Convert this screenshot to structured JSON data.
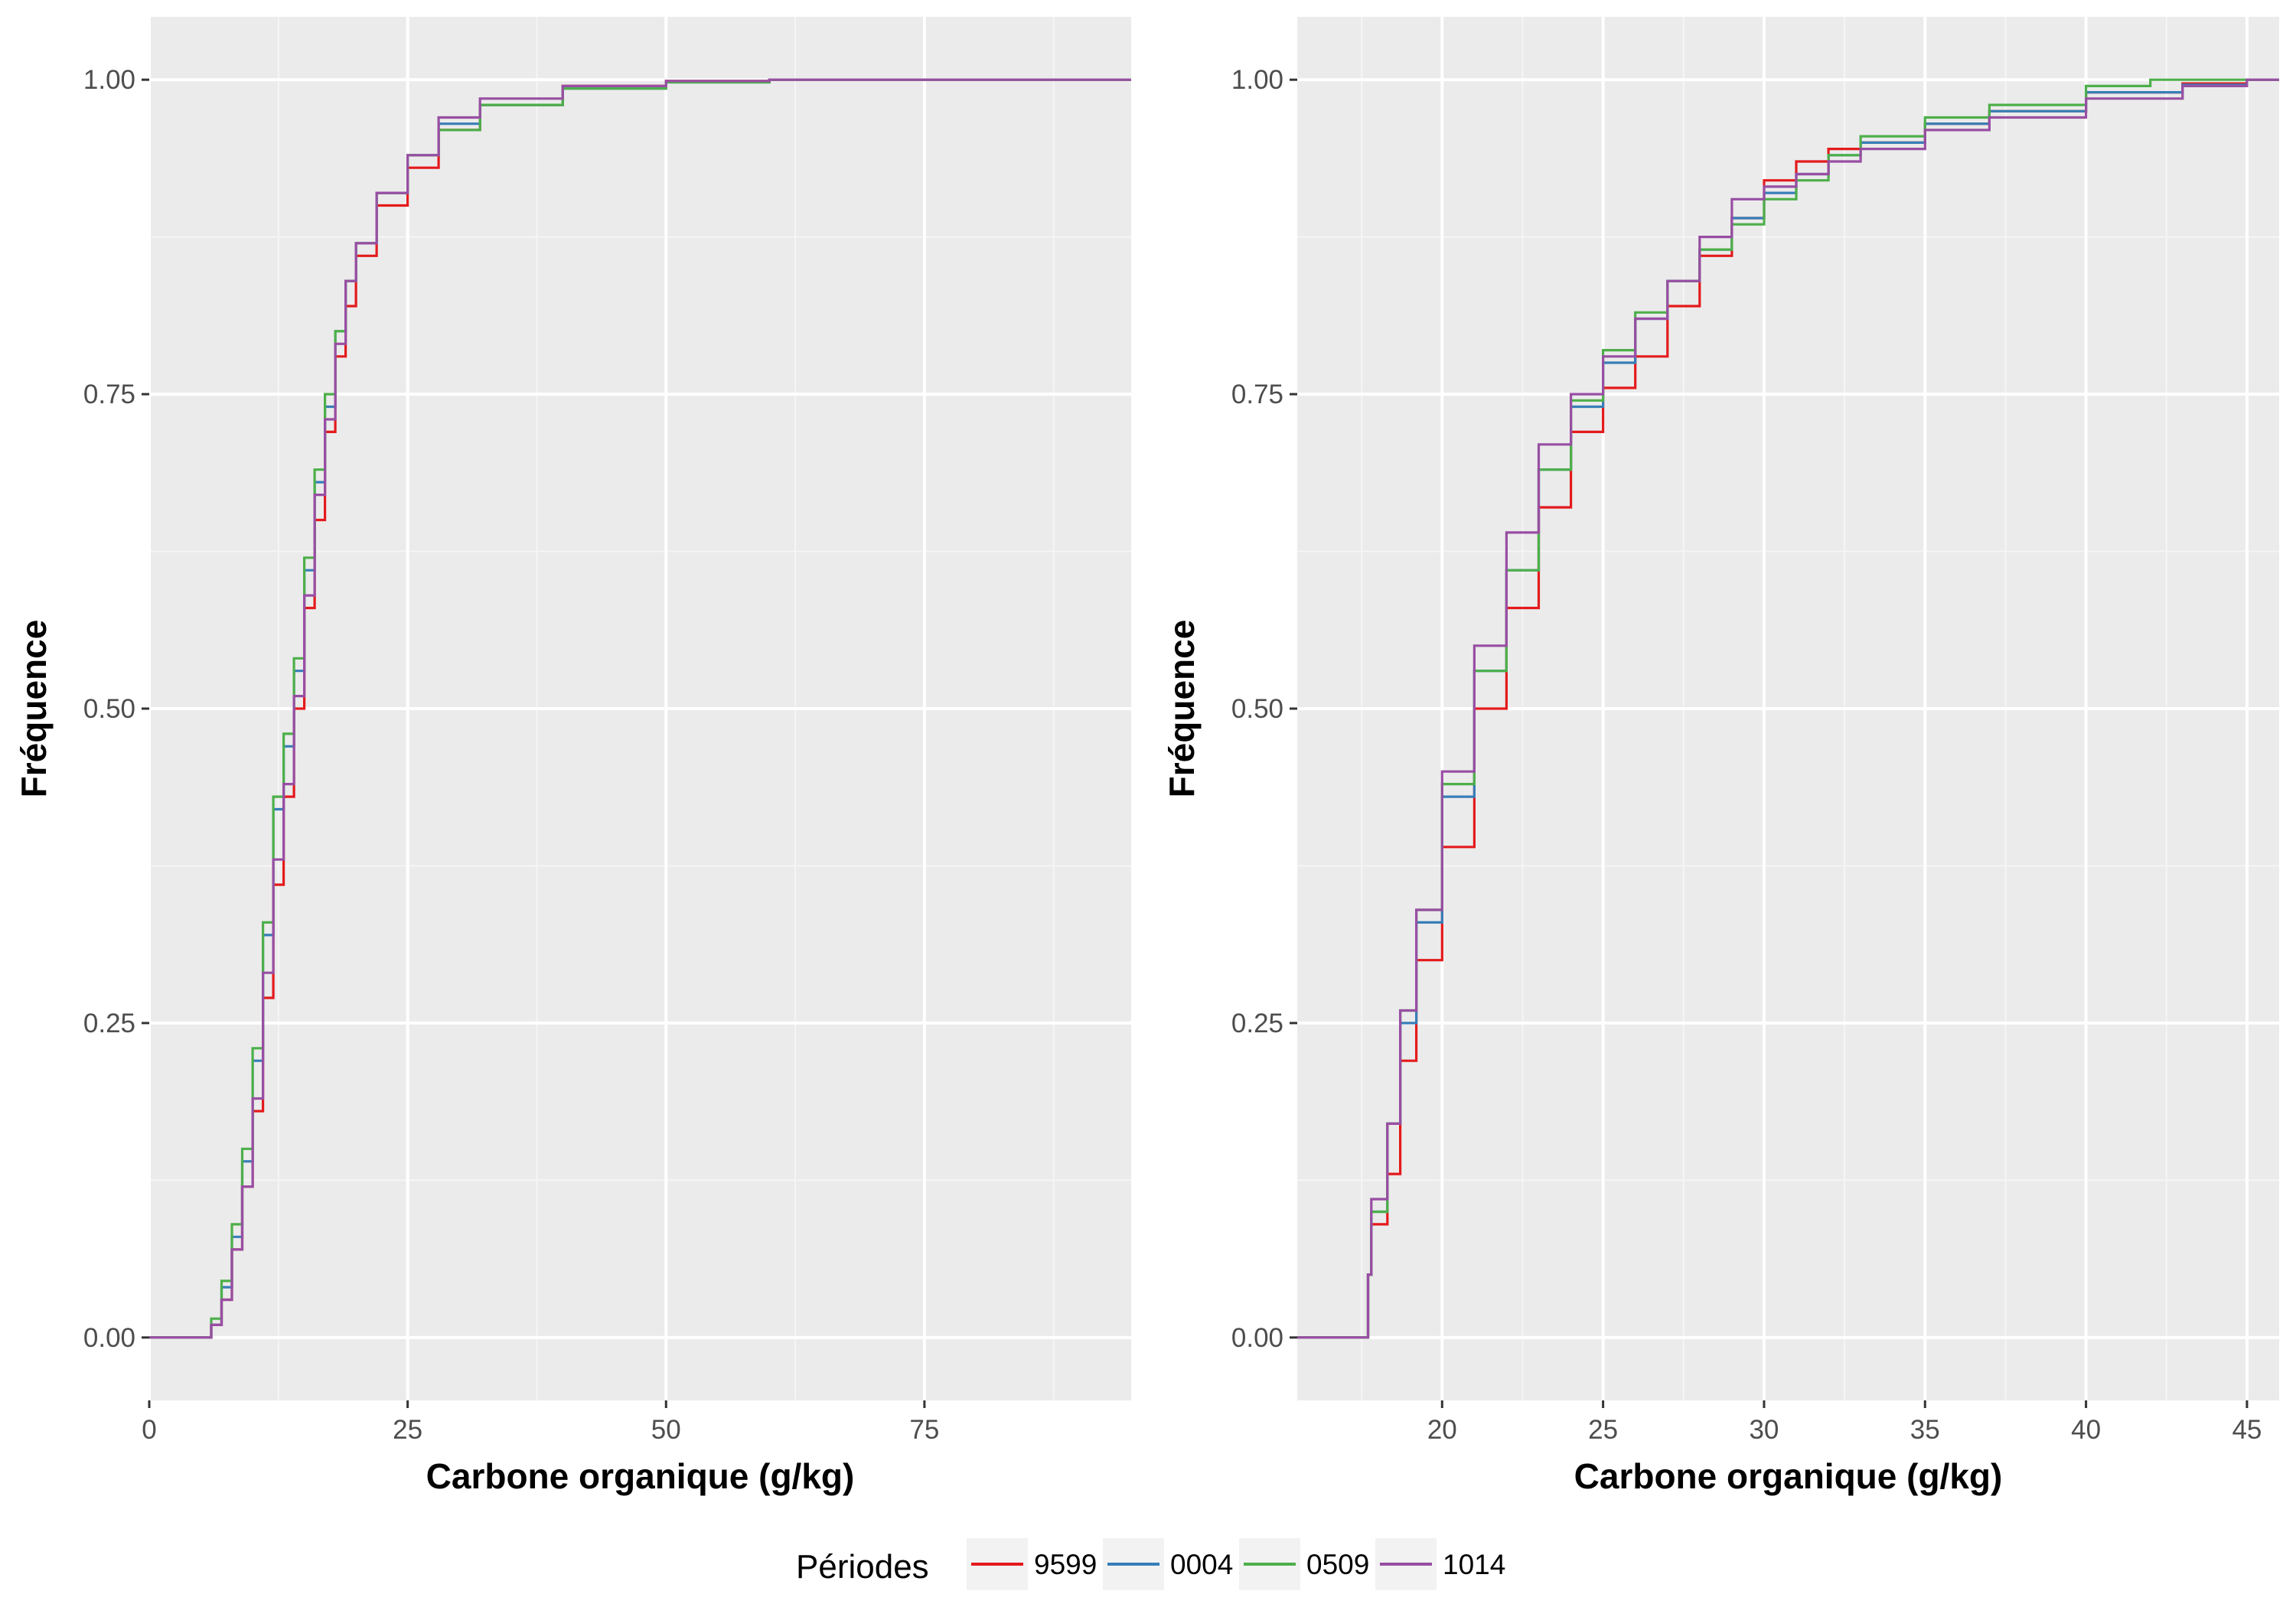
{
  "chart_data": [
    {
      "type": "line",
      "title": "",
      "xlabel": "Carbone organique (g/kg)",
      "ylabel": "Fréquence",
      "xlim": [
        0,
        95
      ],
      "ylim": [
        -0.05,
        1.05
      ],
      "xticks": [
        0,
        25,
        50,
        75
      ],
      "xtick_labels": [
        "0",
        "25",
        "50",
        "75"
      ],
      "yticks": [
        0,
        0.25,
        0.5,
        0.75,
        1
      ],
      "ytick_labels": [
        "0.00",
        "0.25",
        "0.50",
        "0.75",
        "1.00"
      ],
      "grid": true,
      "series": [
        {
          "name": "9599",
          "color": "#e41a1c",
          "points": [
            [
              0,
              0
            ],
            [
              5,
              0
            ],
            [
              6,
              0.01
            ],
            [
              7,
              0.03
            ],
            [
              8,
              0.07
            ],
            [
              9,
              0.12
            ],
            [
              10,
              0.18
            ],
            [
              11,
              0.27
            ],
            [
              12,
              0.36
            ],
            [
              13,
              0.43
            ],
            [
              14,
              0.5
            ],
            [
              15,
              0.58
            ],
            [
              16,
              0.65
            ],
            [
              17,
              0.72
            ],
            [
              18,
              0.78
            ],
            [
              19,
              0.82
            ],
            [
              20,
              0.86
            ],
            [
              22,
              0.9
            ],
            [
              25,
              0.93
            ],
            [
              28,
              0.96
            ],
            [
              32,
              0.98
            ],
            [
              40,
              0.995
            ],
            [
              50,
              0.999
            ],
            [
              60,
              1
            ],
            [
              95,
              1
            ]
          ]
        },
        {
          "name": "0004",
          "color": "#377eb8",
          "points": [
            [
              0,
              0
            ],
            [
              5,
              0
            ],
            [
              6,
              0.01
            ],
            [
              7,
              0.04
            ],
            [
              8,
              0.08
            ],
            [
              9,
              0.14
            ],
            [
              10,
              0.22
            ],
            [
              11,
              0.32
            ],
            [
              12,
              0.42
            ],
            [
              13,
              0.47
            ],
            [
              14,
              0.53
            ],
            [
              15,
              0.61
            ],
            [
              16,
              0.68
            ],
            [
              17,
              0.74
            ],
            [
              18,
              0.8
            ],
            [
              19,
              0.84
            ],
            [
              20,
              0.87
            ],
            [
              22,
              0.91
            ],
            [
              25,
              0.94
            ],
            [
              28,
              0.965
            ],
            [
              32,
              0.98
            ],
            [
              40,
              0.993
            ],
            [
              50,
              0.998
            ],
            [
              60,
              1
            ],
            [
              95,
              1
            ]
          ]
        },
        {
          "name": "0509",
          "color": "#4daf4a",
          "points": [
            [
              0,
              0
            ],
            [
              5,
              0
            ],
            [
              6,
              0.015
            ],
            [
              7,
              0.045
            ],
            [
              8,
              0.09
            ],
            [
              9,
              0.15
            ],
            [
              10,
              0.23
            ],
            [
              11,
              0.33
            ],
            [
              12,
              0.43
            ],
            [
              13,
              0.48
            ],
            [
              14,
              0.54
            ],
            [
              15,
              0.62
            ],
            [
              16,
              0.69
            ],
            [
              17,
              0.75
            ],
            [
              18,
              0.8
            ],
            [
              19,
              0.84
            ],
            [
              20,
              0.87
            ],
            [
              22,
              0.91
            ],
            [
              25,
              0.94
            ],
            [
              28,
              0.96
            ],
            [
              32,
              0.98
            ],
            [
              40,
              0.993
            ],
            [
              50,
              0.998
            ],
            [
              60,
              1
            ],
            [
              95,
              1
            ]
          ]
        },
        {
          "name": "1014",
          "color": "#984ea3",
          "points": [
            [
              0,
              0
            ],
            [
              5,
              0
            ],
            [
              6,
              0.01
            ],
            [
              7,
              0.03
            ],
            [
              8,
              0.07
            ],
            [
              9,
              0.12
            ],
            [
              10,
              0.19
            ],
            [
              11,
              0.29
            ],
            [
              12,
              0.38
            ],
            [
              13,
              0.44
            ],
            [
              14,
              0.51
            ],
            [
              15,
              0.59
            ],
            [
              16,
              0.67
            ],
            [
              17,
              0.73
            ],
            [
              18,
              0.79
            ],
            [
              19,
              0.84
            ],
            [
              20,
              0.87
            ],
            [
              22,
              0.91
            ],
            [
              25,
              0.94
            ],
            [
              28,
              0.97
            ],
            [
              32,
              0.985
            ],
            [
              40,
              0.995
            ],
            [
              50,
              0.999
            ],
            [
              60,
              1
            ],
            [
              95,
              1
            ]
          ]
        }
      ]
    },
    {
      "type": "line",
      "title": "",
      "xlabel": "Carbone organique (g/kg)",
      "ylabel": "Fréquence",
      "xlim": [
        15.5,
        46
      ],
      "ylim": [
        -0.05,
        1.05
      ],
      "xticks": [
        20,
        25,
        30,
        35,
        40,
        45
      ],
      "xtick_labels": [
        "20",
        "25",
        "30",
        "35",
        "40",
        "45"
      ],
      "yticks": [
        0,
        0.25,
        0.5,
        0.75,
        1
      ],
      "ytick_labels": [
        "0.00",
        "0.25",
        "0.50",
        "0.75",
        "1.00"
      ],
      "grid": true,
      "series": [
        {
          "name": "9599",
          "color": "#e41a1c",
          "points": [
            [
              15.5,
              0
            ],
            [
              17.5,
              0
            ],
            [
              17.7,
              0.05
            ],
            [
              17.8,
              0.09
            ],
            [
              18.3,
              0.13
            ],
            [
              18.7,
              0.22
            ],
            [
              19.2,
              0.3
            ],
            [
              20,
              0.39
            ],
            [
              21,
              0.5
            ],
            [
              22,
              0.58
            ],
            [
              23,
              0.66
            ],
            [
              24,
              0.72
            ],
            [
              25,
              0.755
            ],
            [
              26,
              0.78
            ],
            [
              27,
              0.82
            ],
            [
              28,
              0.86
            ],
            [
              29,
              0.89
            ],
            [
              30,
              0.92
            ],
            [
              31,
              0.935
            ],
            [
              32,
              0.945
            ],
            [
              33,
              0.95
            ],
            [
              35,
              0.965
            ],
            [
              37,
              0.975
            ],
            [
              40,
              0.99
            ],
            [
              43,
              0.997
            ],
            [
              45,
              1
            ],
            [
              46,
              1
            ]
          ]
        },
        {
          "name": "0004",
          "color": "#377eb8",
          "points": [
            [
              15.5,
              0
            ],
            [
              17.5,
              0
            ],
            [
              17.7,
              0.05
            ],
            [
              17.8,
              0.1
            ],
            [
              18.3,
              0.17
            ],
            [
              18.7,
              0.25
            ],
            [
              19.2,
              0.33
            ],
            [
              20,
              0.43
            ],
            [
              21,
              0.53
            ],
            [
              22,
              0.61
            ],
            [
              23,
              0.69
            ],
            [
              24,
              0.74
            ],
            [
              25,
              0.775
            ],
            [
              26,
              0.81
            ],
            [
              27,
              0.84
            ],
            [
              28,
              0.865
            ],
            [
              29,
              0.89
            ],
            [
              30,
              0.91
            ],
            [
              31,
              0.925
            ],
            [
              32,
              0.94
            ],
            [
              33,
              0.95
            ],
            [
              35,
              0.965
            ],
            [
              37,
              0.975
            ],
            [
              40,
              0.99
            ],
            [
              43,
              0.996
            ],
            [
              45,
              1
            ],
            [
              46,
              1
            ]
          ]
        },
        {
          "name": "0509",
          "color": "#4daf4a",
          "points": [
            [
              15.5,
              0
            ],
            [
              17.5,
              0
            ],
            [
              17.7,
              0.05
            ],
            [
              17.8,
              0.1
            ],
            [
              18.3,
              0.17
            ],
            [
              18.7,
              0.26
            ],
            [
              19.2,
              0.34
            ],
            [
              20,
              0.44
            ],
            [
              21,
              0.53
            ],
            [
              22,
              0.61
            ],
            [
              23,
              0.69
            ],
            [
              24,
              0.745
            ],
            [
              25,
              0.785
            ],
            [
              26,
              0.815
            ],
            [
              27,
              0.84
            ],
            [
              28,
              0.865
            ],
            [
              29,
              0.885
            ],
            [
              30,
              0.905
            ],
            [
              31,
              0.92
            ],
            [
              32,
              0.94
            ],
            [
              33,
              0.955
            ],
            [
              35,
              0.97
            ],
            [
              37,
              0.98
            ],
            [
              40,
              0.995
            ],
            [
              42,
              1
            ],
            [
              46,
              1
            ]
          ]
        },
        {
          "name": "1014",
          "color": "#984ea3",
          "points": [
            [
              15.5,
              0
            ],
            [
              17.5,
              0
            ],
            [
              17.7,
              0.05
            ],
            [
              17.8,
              0.11
            ],
            [
              18.3,
              0.17
            ],
            [
              18.7,
              0.26
            ],
            [
              19.2,
              0.34
            ],
            [
              20,
              0.45
            ],
            [
              21,
              0.55
            ],
            [
              22,
              0.64
            ],
            [
              23,
              0.71
            ],
            [
              24,
              0.75
            ],
            [
              25,
              0.78
            ],
            [
              26,
              0.81
            ],
            [
              27,
              0.84
            ],
            [
              28,
              0.875
            ],
            [
              29,
              0.905
            ],
            [
              30,
              0.915
            ],
            [
              31,
              0.925
            ],
            [
              32,
              0.935
            ],
            [
              33,
              0.945
            ],
            [
              35,
              0.96
            ],
            [
              37,
              0.97
            ],
            [
              40,
              0.985
            ],
            [
              43,
              0.995
            ],
            [
              45,
              1
            ],
            [
              46,
              1
            ]
          ]
        }
      ]
    }
  ],
  "legend": {
    "title": "Périodes",
    "placement": "bottom",
    "items": [
      {
        "label": "9599",
        "color": "#e41a1c"
      },
      {
        "label": "0004",
        "color": "#377eb8"
      },
      {
        "label": "0509",
        "color": "#4daf4a"
      },
      {
        "label": "1014",
        "color": "#984ea3"
      }
    ]
  },
  "colors": {
    "panel_background": "#ebebeb",
    "grid_major": "#ffffff",
    "grid_minor": "#f5f5f5"
  }
}
